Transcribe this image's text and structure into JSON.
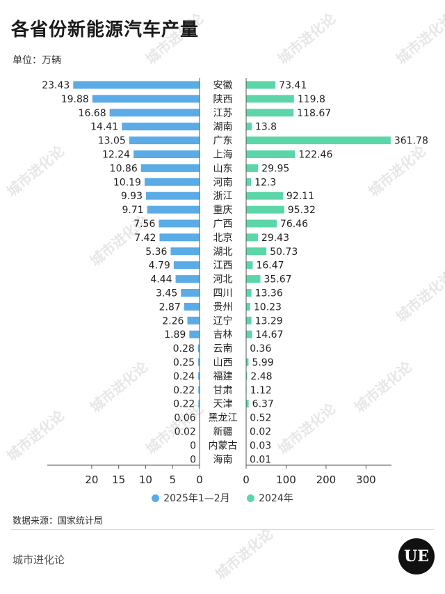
{
  "title": "各省份新能源汽车产量",
  "unit_label": "单位：万辆",
  "source_label": "数据来源：国家统计局",
  "brand": "城市进化论",
  "logo_text": "UE",
  "colors": {
    "series_2025": "#5aabe6",
    "series_2024": "#5cd6a8"
  },
  "chart_data": {
    "type": "bar",
    "orientation": "horizontal-butterfly",
    "categories": [
      "安徽",
      "陕西",
      "江苏",
      "湖南",
      "广东",
      "上海",
      "山东",
      "河南",
      "浙江",
      "重庆",
      "广西",
      "北京",
      "湖北",
      "江西",
      "河北",
      "四川",
      "贵州",
      "辽宁",
      "吉林",
      "云南",
      "山西",
      "福建",
      "甘肃",
      "天津",
      "黑龙江",
      "新疆",
      "内蒙古",
      "海南"
    ],
    "series": [
      {
        "name": "2025年1—2月",
        "side": "left",
        "values": [
          23.43,
          19.88,
          16.68,
          14.41,
          13.05,
          12.24,
          10.86,
          10.19,
          9.93,
          9.71,
          7.56,
          7.42,
          5.36,
          4.79,
          4.44,
          3.45,
          2.87,
          2.26,
          1.89,
          0.28,
          0.25,
          0.24,
          0.22,
          0.22,
          0.06,
          0.02,
          0,
          0
        ],
        "axis_ticks": [
          20,
          15,
          10,
          5,
          0
        ],
        "xlim": [
          0,
          24.5
        ]
      },
      {
        "name": "2024年",
        "side": "right",
        "values": [
          73.41,
          119.8,
          118.67,
          13.8,
          361.78,
          122.46,
          29.95,
          12.3,
          92.11,
          95.32,
          76.46,
          29.43,
          50.73,
          16.47,
          35.67,
          13.36,
          10.23,
          13.29,
          14.67,
          0.36,
          5.99,
          2.48,
          1.12,
          6.37,
          0.52,
          0.02,
          0.03,
          0.01
        ],
        "axis_ticks": [
          0,
          100,
          200,
          300
        ],
        "xlim": [
          0,
          362
        ]
      }
    ],
    "legend_position": "bottom"
  }
}
